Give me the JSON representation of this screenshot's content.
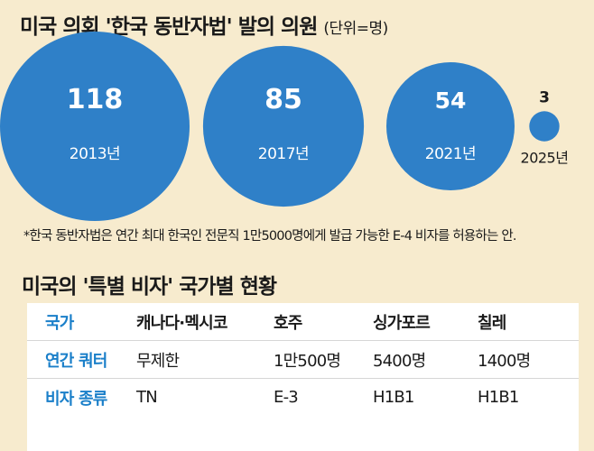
{
  "chart_data": {
    "type": "bubble",
    "title": "미국 의회 '한국 동반자법' 발의 의원",
    "unit": "(단위=명)",
    "categories": [
      "2013년",
      "2017년",
      "2021년",
      "2025년"
    ],
    "values": [
      118,
      85,
      54,
      3
    ],
    "bubble_color": "#2f80c8",
    "footnote": "*한국 동반자법은 연간 최대 한국인 전문직 1만5000명에게 발급 가능한 E-4 비자를 허용하는 안."
  },
  "table": {
    "title": "미국의 '특별 비자' 국가별 현황",
    "header_color": "#1a7fc9",
    "columns": [
      "국가",
      "캐나다·멕시코",
      "호주",
      "싱가포르",
      "칠레"
    ],
    "rows": [
      [
        "연간 쿼터",
        "무제한",
        "1만500명",
        "5400명",
        "1400명"
      ],
      [
        "비자 종류",
        "TN",
        "E-3",
        "H1B1",
        "H1B1"
      ]
    ]
  }
}
